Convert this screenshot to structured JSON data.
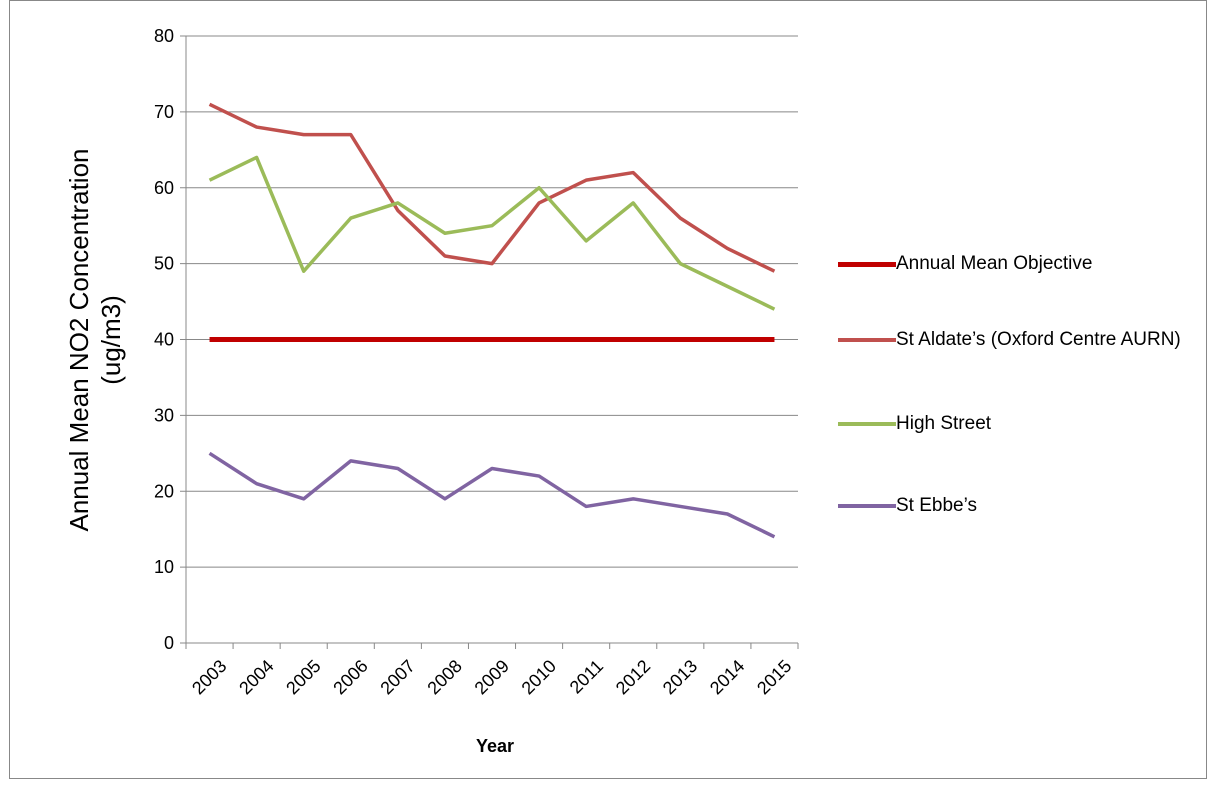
{
  "chart_data": {
    "type": "line",
    "x_label": "Year",
    "y_label": "Annual Mean NO2 Concentration (ug/m3)",
    "categories": [
      "2003",
      "2004",
      "2005",
      "2006",
      "2007",
      "2008",
      "2009",
      "2010",
      "2011",
      "2012",
      "2013",
      "2014",
      "2015"
    ],
    "series": [
      {
        "name": "Annual Mean Objective",
        "color": "#c00000",
        "width": 5,
        "values": [
          40,
          40,
          40,
          40,
          40,
          40,
          40,
          40,
          40,
          40,
          40,
          40,
          40
        ]
      },
      {
        "name": "St Aldate’s (Oxford Centre AURN)",
        "color": "#c0504d",
        "width": 3.5,
        "values": [
          71,
          68,
          67,
          67,
          57,
          51,
          50,
          58,
          61,
          62,
          56,
          52,
          49
        ]
      },
      {
        "name": "High Street",
        "color": "#9bbb59",
        "width": 3.5,
        "values": [
          61,
          64,
          49,
          56,
          58,
          54,
          55,
          60,
          53,
          58,
          50,
          47,
          44
        ]
      },
      {
        "name": "St Ebbe’s",
        "color": "#8064a2",
        "width": 3.5,
        "values": [
          25,
          21,
          19,
          24,
          23,
          19,
          23,
          22,
          18,
          19,
          18,
          17,
          14
        ]
      }
    ],
    "ylim": [
      0,
      80
    ],
    "yticks": [
      0,
      10,
      20,
      30,
      40,
      50,
      60,
      70,
      80
    ],
    "grid": true,
    "legend": "right"
  }
}
